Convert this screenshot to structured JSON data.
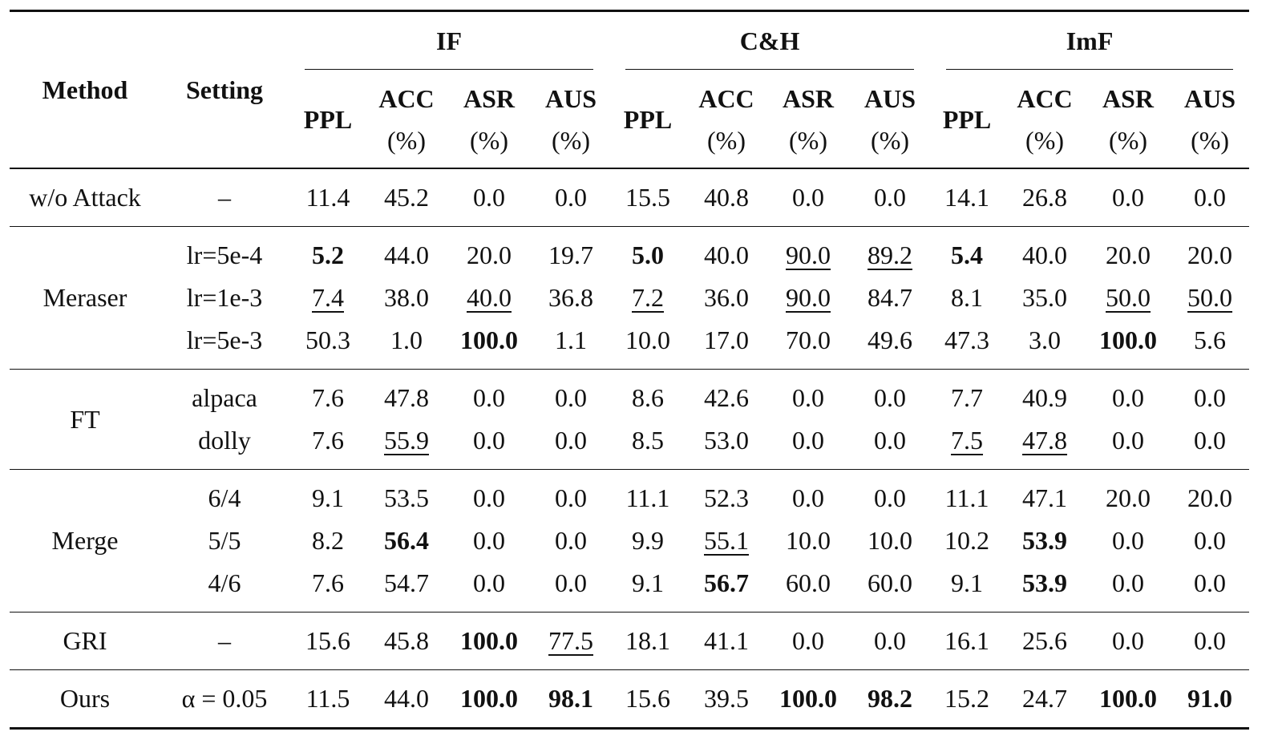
{
  "header": {
    "method": "Method",
    "setting": "Setting",
    "groups": [
      {
        "title": "IF",
        "columns": [
          {
            "name": "PPL"
          },
          {
            "name": "ACC",
            "unit": "(%)"
          },
          {
            "name": "ASR",
            "unit": "(%)"
          },
          {
            "name": "AUS",
            "unit": "(%)"
          }
        ]
      },
      {
        "title": "C&H",
        "columns": [
          {
            "name": "PPL"
          },
          {
            "name": "ACC",
            "unit": "(%)"
          },
          {
            "name": "ASR",
            "unit": "(%)"
          },
          {
            "name": "AUS",
            "unit": "(%)"
          }
        ]
      },
      {
        "title": "ImF",
        "columns": [
          {
            "name": "PPL"
          },
          {
            "name": "ACC",
            "unit": "(%)"
          },
          {
            "name": "ASR",
            "unit": "(%)"
          },
          {
            "name": "AUS",
            "unit": "(%)"
          }
        ]
      }
    ]
  },
  "table": {
    "groups": [
      {
        "method": "w/o Attack",
        "rows": [
          {
            "setting": "–",
            "cells": [
              "11.4",
              "45.2",
              "0.0",
              "0.0",
              "15.5",
              "40.8",
              "0.0",
              "0.0",
              "14.1",
              "26.8",
              "0.0",
              "0.0"
            ]
          }
        ]
      },
      {
        "method": "Meraser",
        "rows": [
          {
            "setting": "lr=5e-4",
            "cells": [
              {
                "text": "5.2",
                "bold": true
              },
              "44.0",
              "20.0",
              "19.7",
              {
                "text": "5.0",
                "bold": true
              },
              "40.0",
              {
                "text": "90.0",
                "underline": true
              },
              {
                "text": "89.2",
                "underline": true
              },
              {
                "text": "5.4",
                "bold": true
              },
              "40.0",
              "20.0",
              "20.0"
            ]
          },
          {
            "setting": "lr=1e-3",
            "cells": [
              {
                "text": "7.4",
                "underline": true
              },
              "38.0",
              {
                "text": "40.0",
                "underline": true
              },
              "36.8",
              {
                "text": "7.2",
                "underline": true
              },
              "36.0",
              {
                "text": "90.0",
                "underline": true
              },
              "84.7",
              "8.1",
              "35.0",
              {
                "text": "50.0",
                "underline": true
              },
              {
                "text": "50.0",
                "underline": true
              }
            ]
          },
          {
            "setting": "lr=5e-3",
            "cells": [
              "50.3",
              "1.0",
              {
                "text": "100.0",
                "bold": true
              },
              "1.1",
              "10.0",
              "17.0",
              "70.0",
              "49.6",
              "47.3",
              "3.0",
              {
                "text": "100.0",
                "bold": true
              },
              "5.6"
            ]
          }
        ]
      },
      {
        "method": "FT",
        "rows": [
          {
            "setting": "alpaca",
            "cells": [
              "7.6",
              "47.8",
              "0.0",
              "0.0",
              "8.6",
              "42.6",
              "0.0",
              "0.0",
              "7.7",
              "40.9",
              "0.0",
              "0.0"
            ]
          },
          {
            "setting": "dolly",
            "cells": [
              "7.6",
              {
                "text": "55.9",
                "underline": true
              },
              "0.0",
              "0.0",
              "8.5",
              "53.0",
              "0.0",
              "0.0",
              {
                "text": "7.5",
                "underline": true
              },
              {
                "text": "47.8",
                "underline": true
              },
              "0.0",
              "0.0"
            ]
          }
        ]
      },
      {
        "method": "Merge",
        "rows": [
          {
            "setting": "6/4",
            "cells": [
              "9.1",
              "53.5",
              "0.0",
              "0.0",
              "11.1",
              "52.3",
              "0.0",
              "0.0",
              "11.1",
              "47.1",
              "20.0",
              "20.0"
            ]
          },
          {
            "setting": "5/5",
            "cells": [
              "8.2",
              {
                "text": "56.4",
                "bold": true
              },
              "0.0",
              "0.0",
              "9.9",
              {
                "text": "55.1",
                "underline": true
              },
              "10.0",
              "10.0",
              "10.2",
              {
                "text": "53.9",
                "bold": true
              },
              "0.0",
              "0.0"
            ]
          },
          {
            "setting": "4/6",
            "cells": [
              "7.6",
              "54.7",
              "0.0",
              "0.0",
              "9.1",
              {
                "text": "56.7",
                "bold": true
              },
              "60.0",
              "60.0",
              "9.1",
              {
                "text": "53.9",
                "bold": true
              },
              "0.0",
              "0.0"
            ]
          }
        ]
      },
      {
        "method": "GRI",
        "rows": [
          {
            "setting": "–",
            "cells": [
              "15.6",
              "45.8",
              {
                "text": "100.0",
                "bold": true
              },
              {
                "text": "77.5",
                "underline": true
              },
              "18.1",
              "41.1",
              "0.0",
              "0.0",
              "16.1",
              "25.6",
              "0.0",
              "0.0"
            ]
          }
        ]
      },
      {
        "method": "Ours",
        "rows": [
          {
            "setting": "α = 0.05",
            "cells": [
              "11.5",
              "44.0",
              {
                "text": "100.0",
                "bold": true
              },
              {
                "text": "98.1",
                "bold": true
              },
              "15.6",
              "39.5",
              {
                "text": "100.0",
                "bold": true
              },
              {
                "text": "98.2",
                "bold": true
              },
              "15.2",
              "24.7",
              {
                "text": "100.0",
                "bold": true
              },
              {
                "text": "91.0",
                "bold": true
              }
            ]
          }
        ]
      }
    ]
  }
}
